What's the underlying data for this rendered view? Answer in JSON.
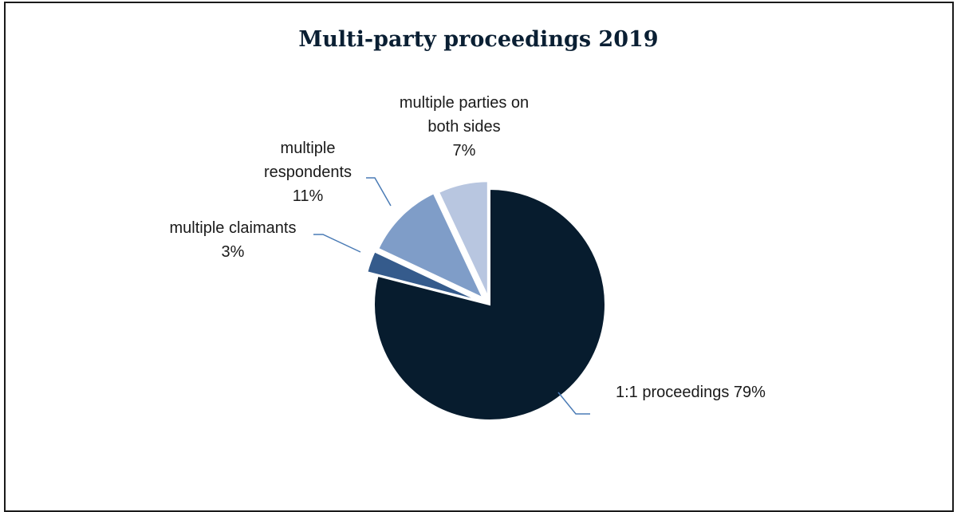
{
  "chart_data": {
    "type": "pie",
    "title": "Multi-party proceedings 2019",
    "slices": [
      {
        "label_lines": [
          "1:1 proceedings 79%"
        ],
        "value": 79,
        "color": "#071c2e"
      },
      {
        "label_lines": [
          "multiple claimants",
          "3%"
        ],
        "value": 3,
        "color": "#355b8c"
      },
      {
        "label_lines": [
          "multiple",
          "respondents",
          "11%"
        ],
        "value": 11,
        "color": "#7f9dc8"
      },
      {
        "label_lines": [
          "multiple parties on",
          "both sides",
          "7%"
        ],
        "value": 7,
        "color": "#b8c6e0"
      }
    ],
    "exploded": true,
    "leader_color": "#4a7bb5"
  }
}
